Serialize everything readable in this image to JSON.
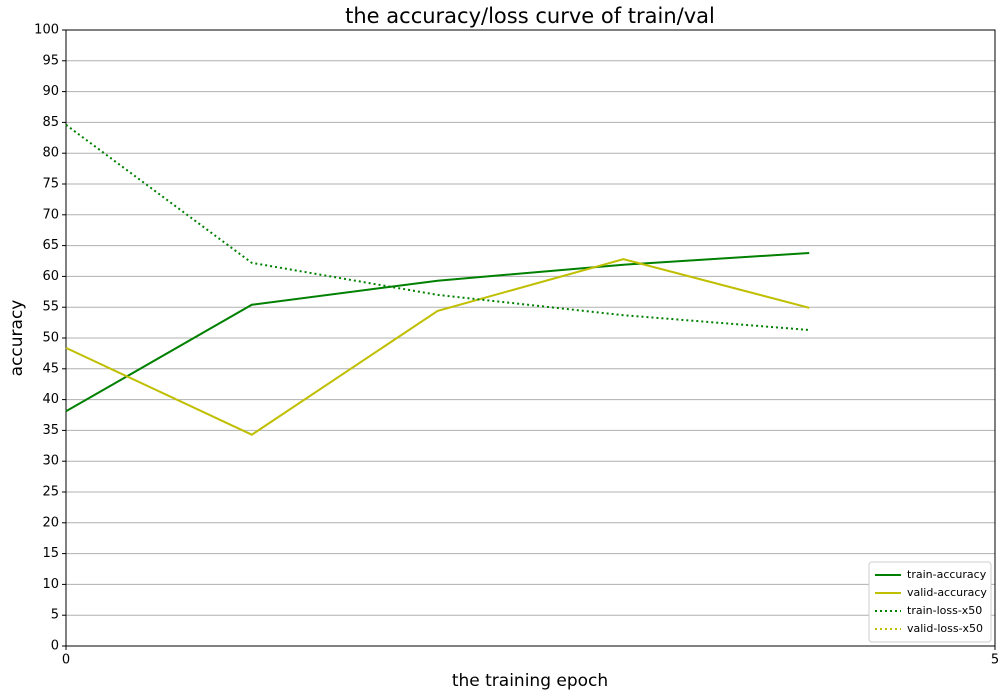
{
  "chart_data": {
    "type": "line",
    "title": "the accuracy/loss curve of train/val",
    "xlabel": "the training epoch",
    "ylabel": "accuracy",
    "x": [
      0,
      1,
      2,
      3,
      4
    ],
    "series": [
      {
        "name": "train-accuracy",
        "color": "#008000",
        "dash": "solid",
        "values": [
          38.1,
          55.4,
          59.3,
          61.9,
          63.8
        ]
      },
      {
        "name": "valid-accuracy",
        "color": "#bfbf00",
        "dash": "solid",
        "values": [
          48.4,
          34.3,
          54.4,
          62.8,
          54.9
        ]
      },
      {
        "name": "train-loss-x50",
        "color": "#008000",
        "dash": "dotted",
        "values": [
          84.6,
          62.2,
          57.0,
          53.7,
          51.3
        ]
      },
      {
        "name": "valid-loss-x50",
        "color": "#bfbf00",
        "dash": "dotted",
        "values": [
          null,
          null,
          null,
          null,
          null
        ]
      }
    ],
    "xlim": [
      0,
      5
    ],
    "xticks": [
      0,
      5
    ],
    "ylim": [
      0,
      100
    ],
    "yticks": [
      0,
      5,
      10,
      15,
      20,
      25,
      30,
      35,
      40,
      45,
      50,
      55,
      60,
      65,
      70,
      75,
      80,
      85,
      90,
      95,
      100
    ],
    "grid": true,
    "legend": "lower right"
  }
}
